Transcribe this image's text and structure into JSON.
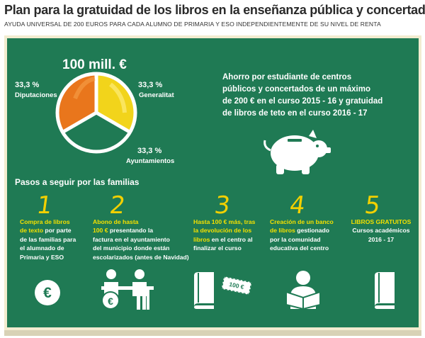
{
  "header": {
    "title": "Plan para la gratuidad de los libros en la enseñanza pública y concertada",
    "subtitle": "AYUDA UNIVERSAL DE 200 EUROS PARA CADA ALUMNO DE PRIMARIA Y ESO INDEPENDIENTEMENTE DE SU NIVEL DE RENTA"
  },
  "pie": {
    "total": "100 mill. €",
    "slices": [
      {
        "pct": "33,3 %",
        "label": "Diputaciones",
        "color": "#e9761c"
      },
      {
        "pct": "33,3 %",
        "label": "Generalitat",
        "color": "#f2d41b"
      },
      {
        "pct": "33,3 %",
        "label": "Ayuntamientos",
        "color": "#c8c8c8"
      }
    ]
  },
  "savings": {
    "lines": [
      "Ahorro por estudiante de centros",
      "públicos y concertados de un máximo",
      "de 200 € en el curso 2015 - 16 y gratuidad",
      "de libros de teto en el curso 2016 - 17"
    ]
  },
  "steps_title": "Pasos a seguir por las familias",
  "steps": [
    {
      "num": "1",
      "lines": [
        {
          "hl": "Compra de libros",
          "rest": ""
        },
        {
          "hl": "de texto",
          "rest": " por parte"
        },
        {
          "hl": "",
          "rest": "de las familias para"
        },
        {
          "hl": "",
          "rest": "el alumnado de"
        },
        {
          "hl": "",
          "rest": "Primaria y ESO"
        }
      ]
    },
    {
      "num": "2",
      "lines": [
        {
          "hl": "Abono de hasta",
          "rest": ""
        },
        {
          "hl": "100 €",
          "rest": " presentando la"
        },
        {
          "hl": "",
          "rest": "factura en el ayuntamiento"
        },
        {
          "hl": "",
          "rest": "del municipio donde están"
        },
        {
          "hl": "",
          "rest": "escolarizados (antes de Navidad)"
        }
      ]
    },
    {
      "num": "3",
      "lines": [
        {
          "hl": "Hasta 100 € más, tras",
          "rest": ""
        },
        {
          "hl": "la devolución de los",
          "rest": ""
        },
        {
          "hl": "libros",
          "rest": " en el centro al"
        },
        {
          "hl": "",
          "rest": "finalizar el curso"
        }
      ]
    },
    {
      "num": "4",
      "lines": [
        {
          "hl": "Creación de un banco",
          "rest": ""
        },
        {
          "hl": "de libros",
          "rest": " gestionado"
        },
        {
          "hl": "",
          "rest": "por la comunidad"
        },
        {
          "hl": "",
          "rest": "educativa del centro"
        }
      ]
    },
    {
      "num": "5",
      "lines": [
        {
          "hl": "LIBROS GRATUITOS",
          "rest": ""
        },
        {
          "hl": "",
          "rest": "Cursos académicos"
        },
        {
          "hl": "",
          "rest": "2016 - 17"
        }
      ]
    }
  ],
  "icons": {
    "euro_symbol": "€",
    "bill_text": "100 €"
  },
  "colors": {
    "board": "#1f7a54",
    "accent": "#f3e000",
    "frame": "#f2ecd0"
  }
}
